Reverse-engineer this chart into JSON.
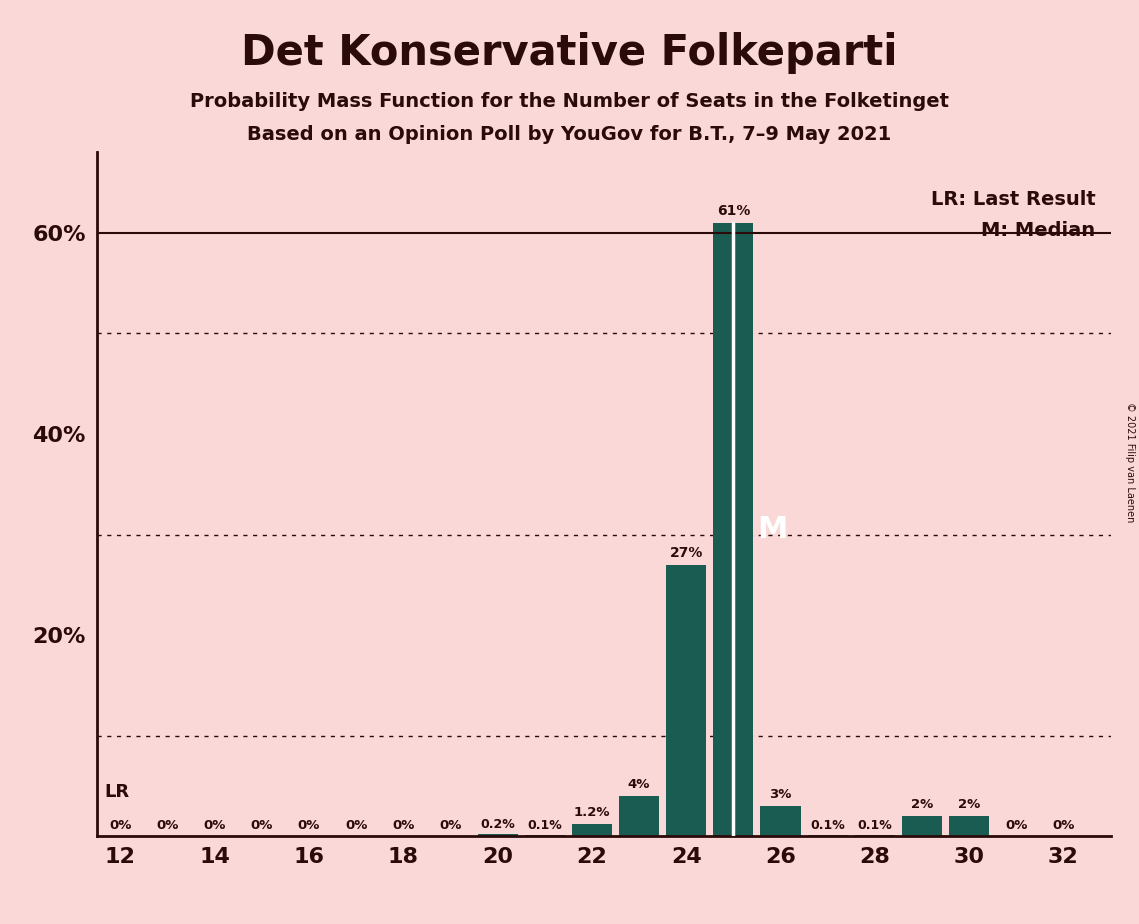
{
  "title": "Det Konservative Folkeparti",
  "subtitle1": "Probability Mass Function for the Number of Seats in the Folketinget",
  "subtitle2": "Based on an Opinion Poll by YouGov for B.T., 7–9 May 2021",
  "copyright": "© 2021 Filip van Laenen",
  "background_color": "#fad8d8",
  "bar_color": "#1a5c52",
  "text_color": "#2b0a0a",
  "seats": [
    12,
    13,
    14,
    15,
    16,
    17,
    18,
    19,
    20,
    21,
    22,
    23,
    24,
    25,
    26,
    27,
    28,
    29,
    30,
    31,
    32
  ],
  "probs": [
    0,
    0,
    0,
    0,
    0,
    0,
    0,
    0,
    0.2,
    0.1,
    1.2,
    4,
    27,
    61,
    3,
    0.1,
    0.1,
    2,
    2,
    0,
    0
  ],
  "labels": [
    "0%",
    "0%",
    "0%",
    "0%",
    "0%",
    "0%",
    "0%",
    "0%",
    "0.2%",
    "0.1%",
    "1.2%",
    "4%",
    "27%",
    "61%",
    "3%",
    "0.1%",
    "0.1%",
    "2%",
    "2%",
    "0%",
    "0%"
  ],
  "xlim": [
    11.5,
    33
  ],
  "ylim": [
    0,
    68
  ],
  "xticks": [
    12,
    14,
    16,
    18,
    20,
    22,
    24,
    26,
    28,
    30,
    32
  ],
  "yticks": [
    0,
    20,
    40,
    60
  ],
  "hlines_solid": [
    60
  ],
  "hlines_dotted": [
    10,
    30,
    50
  ],
  "last_result_seat": 12,
  "median_seat": 25,
  "legend_lr": "LR: Last Result",
  "legend_m": "M: Median",
  "bar_width": 0.85
}
